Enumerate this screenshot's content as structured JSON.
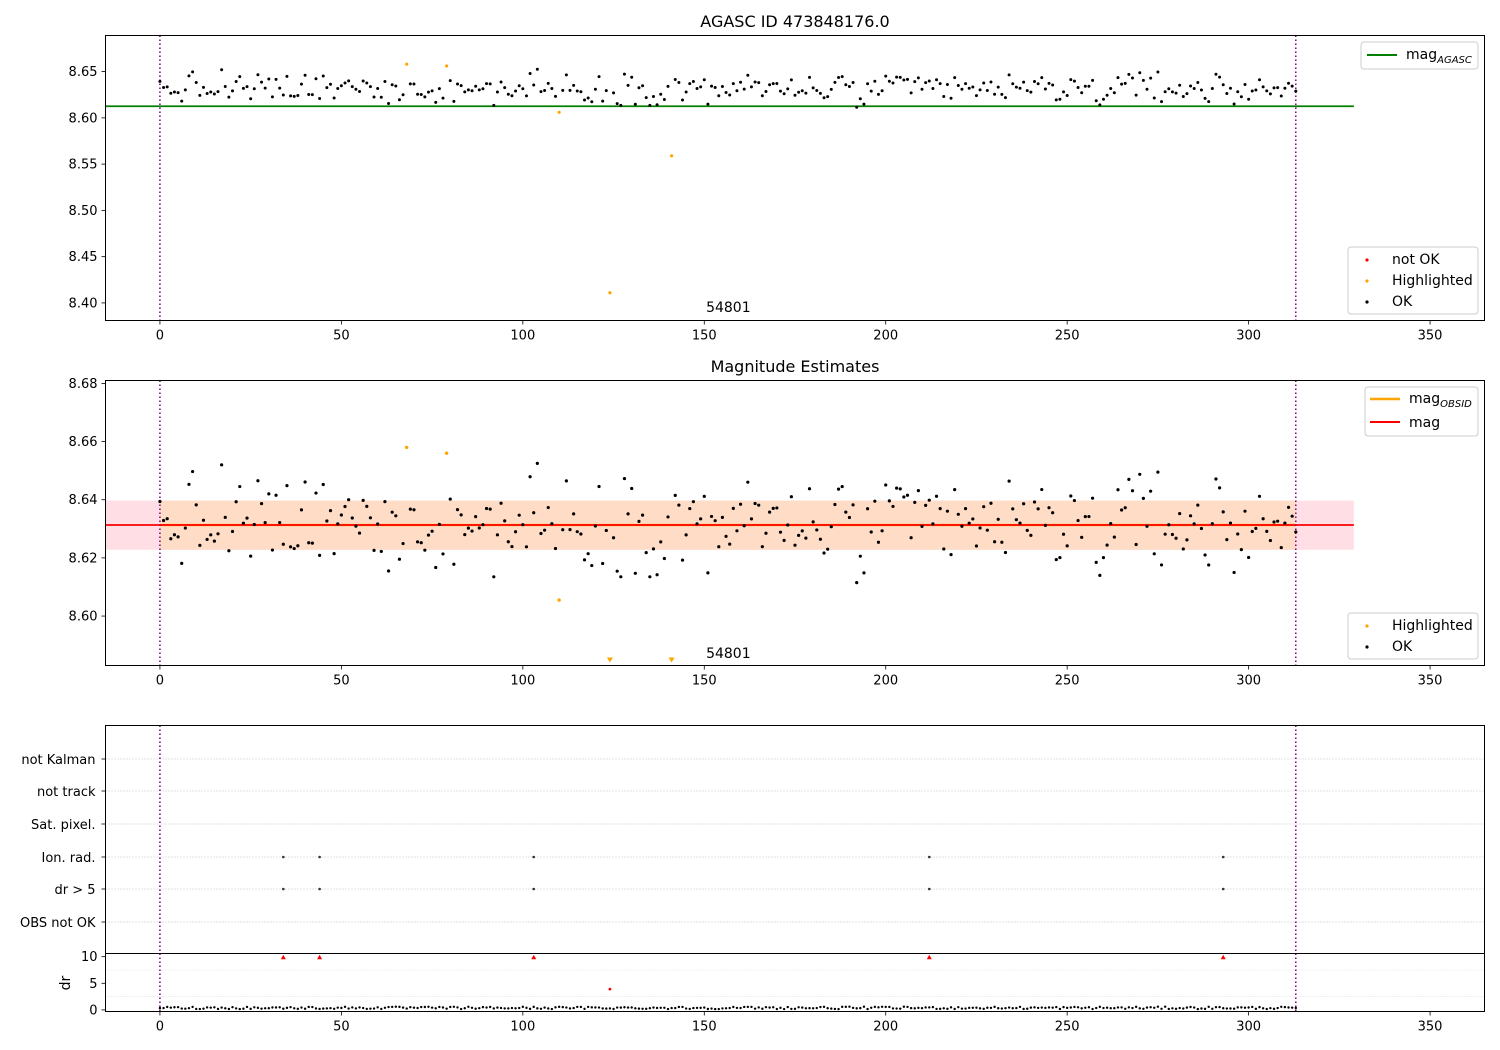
{
  "chart_data": [
    {
      "type": "scatter",
      "title": "AGASC ID 473848176.0",
      "xlabel": "",
      "ylabel": "",
      "xlim": [
        -15,
        365
      ],
      "ylim": [
        8.381,
        8.689
      ],
      "xticks": [
        0,
        50,
        100,
        150,
        200,
        250,
        300,
        350
      ],
      "yticks": [
        8.4,
        8.45,
        8.5,
        8.55,
        8.6,
        8.65
      ],
      "vlines": [
        0,
        313
      ],
      "annotation": {
        "text": "54801",
        "x": 150.5,
        "y": 8.39
      },
      "reference_line": {
        "name": "mag_AGASC",
        "y": 8.6125,
        "x_range": [
          -15,
          329
        ]
      },
      "highlighted": [
        [
          68,
          8.658
        ],
        [
          79,
          8.656
        ],
        [
          110,
          8.606
        ],
        [
          141,
          8.559
        ],
        [
          124,
          8.411
        ]
      ],
      "legend_top": {
        "position": "top-right",
        "entries": [
          {
            "label_main": "mag",
            "label_sub": "AGASC",
            "color": "#008000"
          }
        ]
      },
      "legend_bottom": {
        "position": "lower-right",
        "entries": [
          {
            "label": "not OK",
            "color": "#ff0000"
          },
          {
            "label": "Highlighted",
            "color": "#ffa500"
          },
          {
            "label": "OK",
            "color": "#000000"
          }
        ]
      }
    },
    {
      "type": "scatter",
      "title": "Magnitude Estimates",
      "xlabel": "",
      "ylabel": "",
      "xlim": [
        -15,
        365
      ],
      "ylim": [
        8.583,
        8.681
      ],
      "xticks": [
        0,
        50,
        100,
        150,
        200,
        250,
        300,
        350
      ],
      "yticks": [
        8.6,
        8.62,
        8.64,
        8.66,
        8.68
      ],
      "vlines": [
        0,
        313
      ],
      "annotation": {
        "text": "54801",
        "x": 150.5,
        "y": 8.5855
      },
      "mag": {
        "name": "mag",
        "y": 8.6313,
        "band": [
          8.6228,
          8.6397
        ],
        "x_range": [
          -15,
          329
        ]
      },
      "mag_obsid": {
        "name": "mag_OBSID",
        "y": 8.6313,
        "band": [
          8.6228,
          8.6397
        ],
        "x_range": [
          0,
          313
        ]
      },
      "highlighted": [
        [
          68,
          8.658
        ],
        [
          79,
          8.656
        ],
        [
          110,
          8.6055
        ]
      ],
      "below_range_markers": [
        124,
        141
      ],
      "legend_top": {
        "position": "top-right",
        "entries": [
          {
            "label_main": "mag",
            "label_sub": "OBSID",
            "color": "#ffa500"
          },
          {
            "label_main": "mag",
            "label_sub": "",
            "color": "#ff0000"
          }
        ]
      },
      "legend_bottom": {
        "position": "lower-right",
        "entries": [
          {
            "label": "Highlighted",
            "color": "#ffa500"
          },
          {
            "label": "OK",
            "color": "#000000"
          }
        ]
      }
    },
    {
      "type": "scatter",
      "title": "",
      "xlabel": "",
      "ylabel": "",
      "xlim": [
        -15,
        365
      ],
      "categories": [
        "not Kalman",
        "not track",
        "Sat. pixel.",
        "Ion. rad.",
        "dr > 5",
        "OBS not OK"
      ],
      "vlines": [
        0,
        313
      ],
      "flags": {
        "Ion. rad.": [
          34,
          44,
          103,
          212,
          293
        ],
        "dr > 5": [
          34,
          44,
          103,
          212,
          293
        ]
      }
    },
    {
      "type": "scatter",
      "title": "",
      "xlabel": "",
      "ylabel": "dr",
      "xlim": [
        -15,
        365
      ],
      "ylim": [
        -0.3,
        10.6
      ],
      "xticks": [
        0,
        50,
        100,
        150,
        200,
        250,
        300,
        350
      ],
      "yticks": [
        0,
        5,
        10
      ],
      "vlines": [
        0,
        313
      ],
      "high_points": [
        [
          34,
          9.9
        ],
        [
          44,
          9.9
        ],
        [
          103,
          9.9
        ],
        [
          212,
          9.9
        ],
        [
          293,
          9.9
        ],
        [
          124,
          3.9
        ]
      ]
    }
  ],
  "colors": {
    "ok": "#000000",
    "highlighted": "#ffa500",
    "not_ok": "#ff0000",
    "agasc_line": "#008000",
    "mag_line": "#ff0000",
    "mag_band": "#ffc0cb",
    "obsid_band": "#ffdab9",
    "vline": "#800080"
  }
}
